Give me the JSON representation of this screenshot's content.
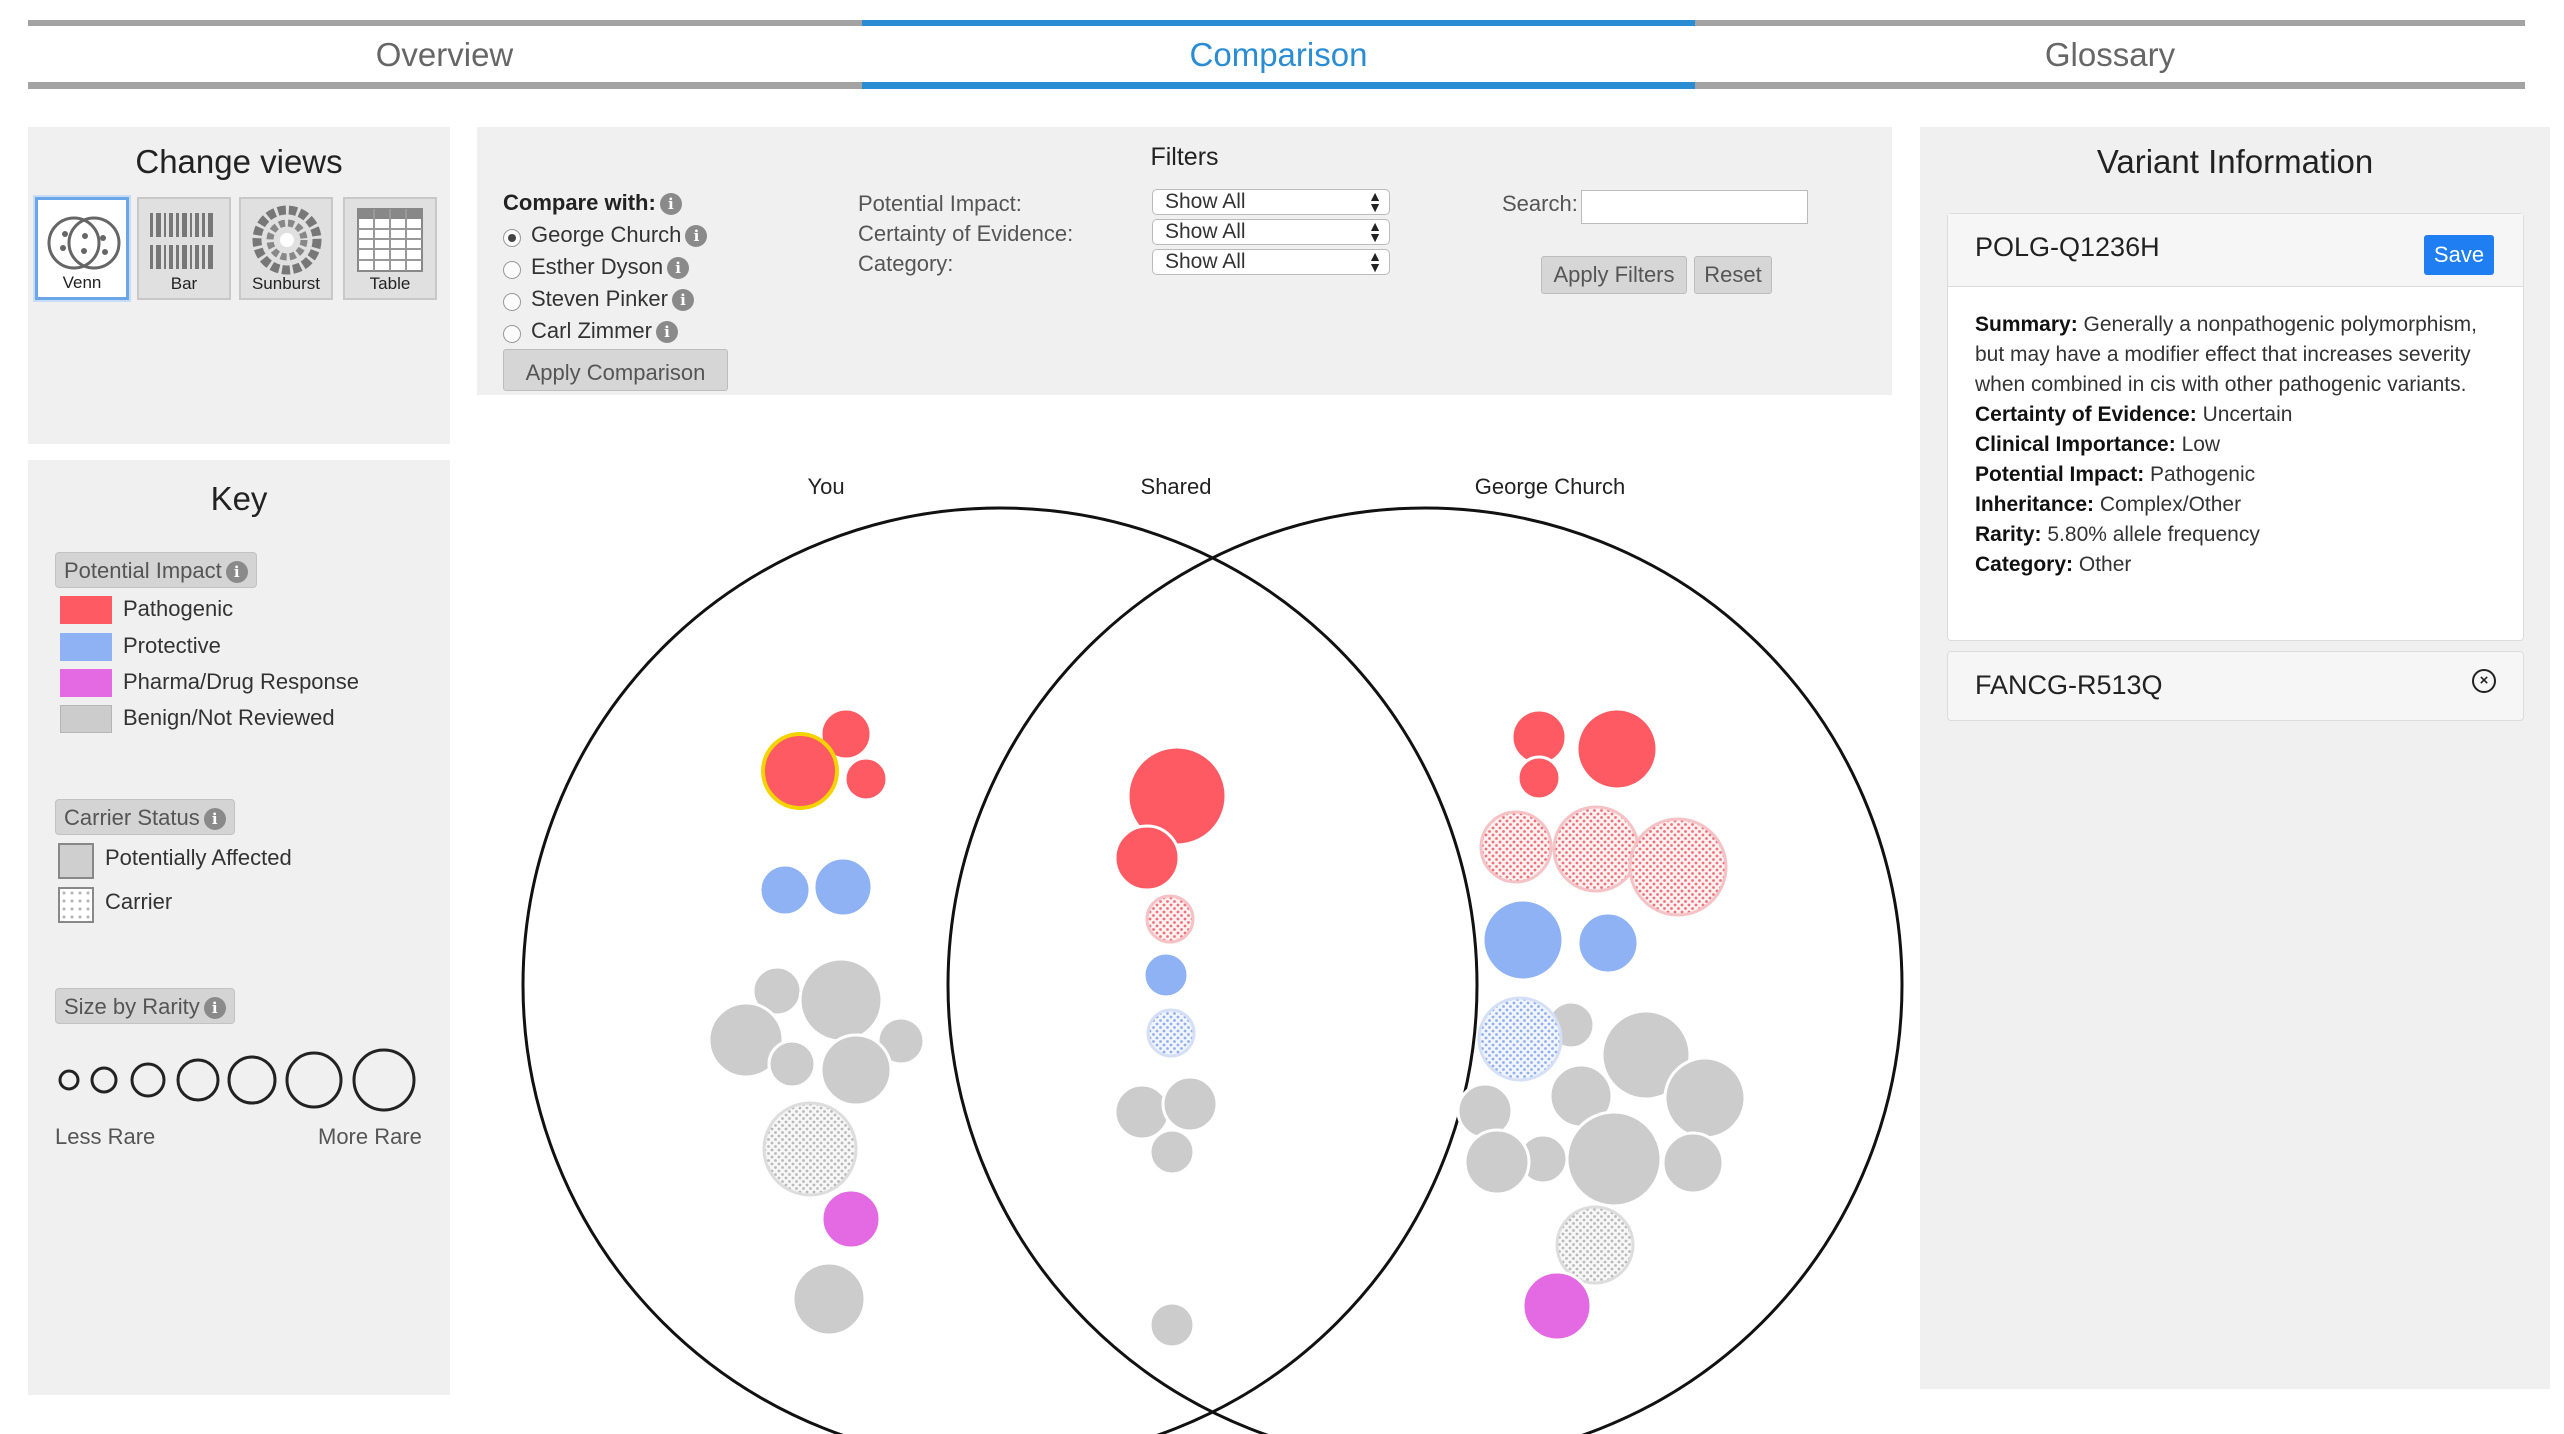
{
  "tabs": [
    "Overview",
    "Comparison",
    "Glossary"
  ],
  "active_tab": "Comparison",
  "change_views": {
    "title": "Change views",
    "buttons": [
      "Venn",
      "Bar",
      "Sunburst",
      "Table"
    ],
    "selected": "Venn"
  },
  "key": {
    "title": "Key",
    "potential_impact": {
      "label": "Potential Impact",
      "items": [
        {
          "label": "Pathogenic",
          "color": "#fe5a63"
        },
        {
          "label": "Protective",
          "color": "#8fb2f5"
        },
        {
          "label": "Pharma/Drug Response",
          "color": "#e46ae3"
        },
        {
          "label": "Benign/Not Reviewed",
          "color": "#cccccc"
        }
      ]
    },
    "carrier_status": {
      "label": "Carrier Status",
      "items": [
        "Potentially Affected",
        "Carrier"
      ]
    },
    "size_by_rarity": {
      "label": "Size by Rarity",
      "less": "Less Rare",
      "more": "More Rare"
    }
  },
  "filters": {
    "title": "Filters",
    "compare_with_label": "Compare with:",
    "people": [
      "George Church",
      "Esther Dyson",
      "Steven Pinker",
      "Carl Zimmer"
    ],
    "selected_person": "George Church",
    "apply_comparison": "Apply Comparison",
    "potential_impact_label": "Potential Impact:",
    "certainty_label": "Certainty of Evidence:",
    "category_label": "Category:",
    "select_value": "Show All",
    "search_label": "Search:",
    "search_value": "",
    "apply_filters": "Apply Filters",
    "reset": "Reset"
  },
  "venn": {
    "left_label": "You",
    "shared_label": "Shared",
    "right_label": "George Church"
  },
  "variant_info": {
    "title": "Variant Information",
    "selected_variant": "POLG-Q1236H",
    "save": "Save",
    "details": [
      {
        "k": "Summary:",
        "v": "Generally a nonpathogenic polymorphism, but may have a modifier effect that increases severity when combined in cis with other pathogenic variants."
      },
      {
        "k": "Certainty of Evidence:",
        "v": "Uncertain"
      },
      {
        "k": "Clinical Importance:",
        "v": "Low"
      },
      {
        "k": "Potential Impact:",
        "v": "Pathogenic"
      },
      {
        "k": "Inheritance:",
        "v": "Complex/Other"
      },
      {
        "k": "Rarity:",
        "v": "5.80% allele frequency"
      },
      {
        "k": "Category:",
        "v": "Other"
      }
    ],
    "other_variant": "FANCG-R513Q"
  }
}
